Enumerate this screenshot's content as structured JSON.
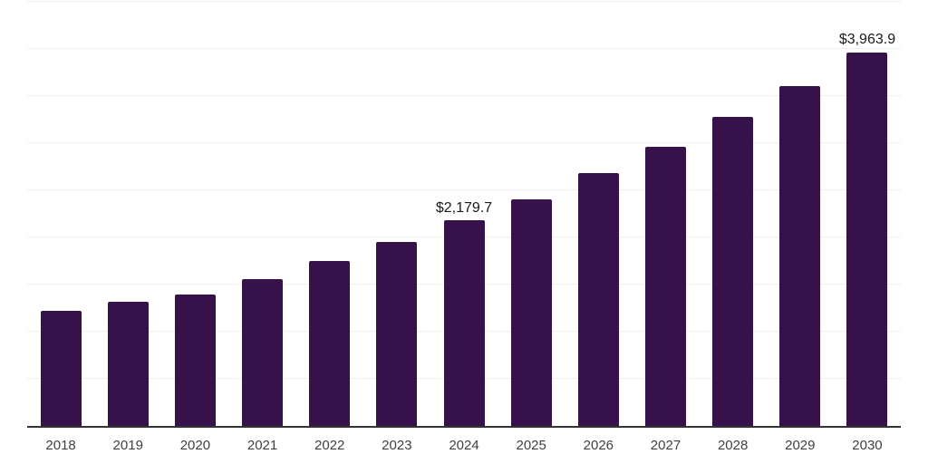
{
  "chart_data": {
    "type": "bar",
    "title": "",
    "xlabel": "",
    "ylabel": "",
    "categories": [
      "2018",
      "2019",
      "2020",
      "2021",
      "2022",
      "2023",
      "2024",
      "2025",
      "2026",
      "2027",
      "2028",
      "2029",
      "2030"
    ],
    "values": [
      1220,
      1315,
      1390,
      1560,
      1750,
      1955,
      2179.7,
      2405,
      2685,
      2960,
      3280,
      3610,
      3963.9
    ],
    "value_labels": [
      "",
      "",
      "",
      "",
      "",
      "",
      "$2,179.7",
      "",
      "",
      "",
      "",
      "",
      "$3,963.9"
    ],
    "labeled_points": [
      {
        "category": "2024",
        "label": "$2,179.7",
        "value": 2179.7
      },
      {
        "category": "2030",
        "label": "$3,963.9",
        "value": 3963.9
      }
    ],
    "ylim": [
      0,
      4500
    ],
    "gridline_step": 500,
    "grid": "horizontal",
    "legend": "none",
    "y_axis_tick_labels_visible": false
  },
  "style": {
    "bar_color": "#36114A",
    "axis_line_color": "#333333",
    "gridline_color": "#efefef",
    "data_label_color": "#1a1a1a",
    "tick_label_color": "#404040",
    "background_color": "#ffffff"
  }
}
